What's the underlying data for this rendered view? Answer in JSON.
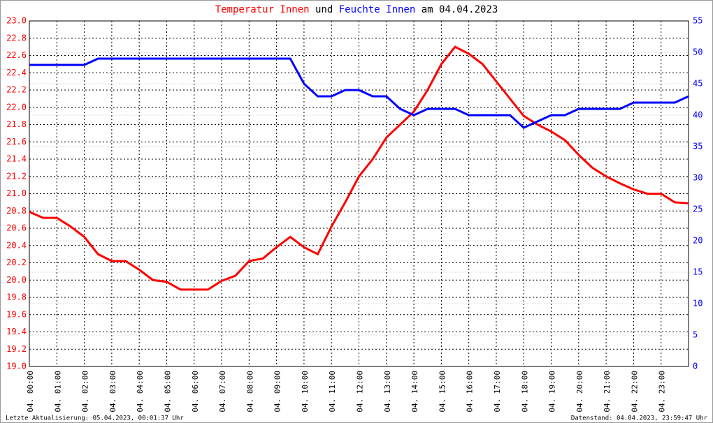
{
  "chart_data": {
    "type": "line",
    "title_parts": [
      {
        "text": "Temperatur Innen",
        "color": "#ff0000"
      },
      {
        "text": "und",
        "color": "#000000"
      },
      {
        "text": "Feuchte Innen",
        "color": "#0000ff"
      },
      {
        "text": "am 04.04.2023",
        "color": "#000000"
      }
    ],
    "footer_left": "Letzte Aktualisierung: 05.04.2023, 00:01:37 Uhr",
    "footer_right": "Datenstand: 04.04.2023, 23:59:47 Uhr",
    "x": [
      0,
      0.5,
      1,
      1.5,
      2,
      2.5,
      3,
      3.5,
      4,
      4.5,
      5,
      5.5,
      6,
      6.5,
      7,
      7.5,
      8,
      8.5,
      9,
      9.5,
      10,
      10.5,
      11,
      11.5,
      12,
      12.5,
      13,
      13.5,
      14,
      14.5,
      15,
      15.5,
      16,
      16.5,
      17,
      17.5,
      18,
      18.5,
      19,
      19.5,
      20,
      20.5,
      21,
      21.5,
      22,
      22.5,
      23,
      23.5,
      24
    ],
    "xlim": [
      0,
      24
    ],
    "xticks": [
      {
        "value": 0,
        "label": "04. 00:00"
      },
      {
        "value": 1,
        "label": "04. 01:00"
      },
      {
        "value": 2,
        "label": "04. 02:00"
      },
      {
        "value": 3,
        "label": "04. 03:00"
      },
      {
        "value": 4,
        "label": "04. 04:00"
      },
      {
        "value": 5,
        "label": "04. 05:00"
      },
      {
        "value": 6,
        "label": "04. 06:00"
      },
      {
        "value": 7,
        "label": "04. 07:00"
      },
      {
        "value": 8,
        "label": "04. 08:00"
      },
      {
        "value": 9,
        "label": "04. 09:00"
      },
      {
        "value": 10,
        "label": "04. 10:00"
      },
      {
        "value": 11,
        "label": "04. 11:00"
      },
      {
        "value": 12,
        "label": "04. 12:00"
      },
      {
        "value": 13,
        "label": "04. 13:00"
      },
      {
        "value": 14,
        "label": "04. 14:00"
      },
      {
        "value": 15,
        "label": "04. 15:00"
      },
      {
        "value": 16,
        "label": "04. 16:00"
      },
      {
        "value": 17,
        "label": "04. 17:00"
      },
      {
        "value": 18,
        "label": "04. 18:00"
      },
      {
        "value": 19,
        "label": "04. 19:00"
      },
      {
        "value": 20,
        "label": "04. 20:00"
      },
      {
        "value": 21,
        "label": "04. 21:00"
      },
      {
        "value": 22,
        "label": "04. 22:00"
      },
      {
        "value": 23,
        "label": "04. 23:00"
      }
    ],
    "ylim": [
      19,
      23
    ],
    "yticks": [
      {
        "value": 19,
        "label": "19.0"
      },
      19.2,
      19.4,
      19.6,
      19.8,
      {
        "value": 20,
        "label": "20.0"
      },
      20.2,
      20.4,
      20.6,
      20.8,
      {
        "value": 21,
        "label": "21.0"
      },
      21.2,
      21.4,
      21.6,
      21.8,
      {
        "value": 22,
        "label": "22.0"
      },
      22.2,
      22.4,
      22.6,
      22.8,
      {
        "value": 23,
        "label": "23.0"
      }
    ],
    "y2lim": [
      0,
      55
    ],
    "y2ticks": [
      0,
      5,
      10,
      15,
      20,
      25,
      30,
      35,
      40,
      45,
      50,
      55
    ],
    "grid": true,
    "series": [
      {
        "name": "Temperatur Innen",
        "color": "#ff0000",
        "values": [
          20.79,
          20.72,
          20.72,
          20.62,
          20.5,
          20.3,
          20.22,
          20.22,
          20.12,
          20.0,
          19.98,
          19.89,
          19.89,
          19.89,
          19.99,
          20.05,
          20.22,
          20.25,
          20.38,
          20.5,
          20.38,
          20.3,
          20.62,
          20.9,
          21.2,
          21.4,
          21.65,
          21.8,
          21.95,
          22.2,
          22.5,
          22.7,
          22.62,
          22.5,
          22.3,
          22.1,
          21.9,
          21.8,
          21.72,
          21.62,
          21.45,
          21.3,
          21.2,
          21.12,
          21.05,
          21.0,
          21.0,
          20.9,
          20.89
        ]
      },
      {
        "name": "Feuchte Innen",
        "color": "#0000ff",
        "axis": "y2",
        "values": [
          48,
          48,
          48,
          48,
          48,
          49,
          49,
          49,
          49,
          49,
          49,
          49,
          49,
          49,
          49,
          49,
          49,
          49,
          49,
          49,
          45,
          43,
          43,
          44,
          44,
          43,
          43,
          41,
          40,
          41,
          41,
          41,
          40,
          40,
          40,
          40,
          38,
          39,
          40,
          40,
          41,
          41,
          41,
          41,
          42,
          42,
          42,
          42,
          43
        ]
      }
    ]
  }
}
